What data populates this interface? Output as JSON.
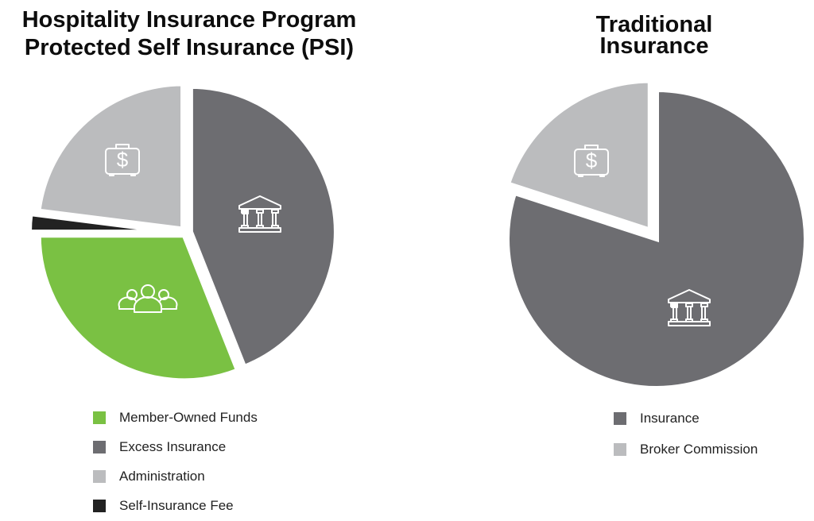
{
  "charts": {
    "psi": {
      "title_line1": "Hospitality Insurance Program",
      "title_line2": "Protected Self Insurance (PSI)",
      "legend": [
        {
          "label": "Member-Owned Funds",
          "color": "#7ac143"
        },
        {
          "label": "Excess Insurance",
          "color": "#6d6d71"
        },
        {
          "label": "Administration",
          "color": "#bbbcbe"
        },
        {
          "label": "Self-Insurance Fee",
          "color": "#222222"
        }
      ]
    },
    "traditional": {
      "title_line1": "Traditional",
      "title_line2": "Insurance",
      "legend": [
        {
          "label": "Insurance",
          "color": "#6d6d71"
        },
        {
          "label": "Broker Commission",
          "color": "#bbbcbe"
        }
      ]
    }
  },
  "chart_data": [
    {
      "type": "pie",
      "title": "Hospitality Insurance Program Protected Self Insurance (PSI)",
      "categories": [
        "Excess Insurance",
        "Member-Owned Funds",
        "Self-Insurance Fee",
        "Administration"
      ],
      "values": [
        44,
        31,
        2,
        23
      ],
      "colors": [
        "#6d6d71",
        "#7ac143",
        "#222222",
        "#bbbcbe"
      ],
      "icons": [
        "bank-icon",
        "people-icon",
        null,
        "money-briefcase-icon"
      ],
      "legend_order": [
        "Member-Owned Funds",
        "Excess Insurance",
        "Administration",
        "Self-Insurance Fee"
      ],
      "legend_position": "bottom",
      "exploded": true
    },
    {
      "type": "pie",
      "title": "Traditional Insurance",
      "categories": [
        "Insurance",
        "Broker Commission"
      ],
      "values": [
        80,
        20
      ],
      "colors": [
        "#6d6d71",
        "#bbbcbe"
      ],
      "icons": [
        "bank-icon",
        "money-briefcase-icon"
      ],
      "legend_order": [
        "Insurance",
        "Broker Commission"
      ],
      "legend_position": "bottom",
      "exploded": true
    }
  ]
}
